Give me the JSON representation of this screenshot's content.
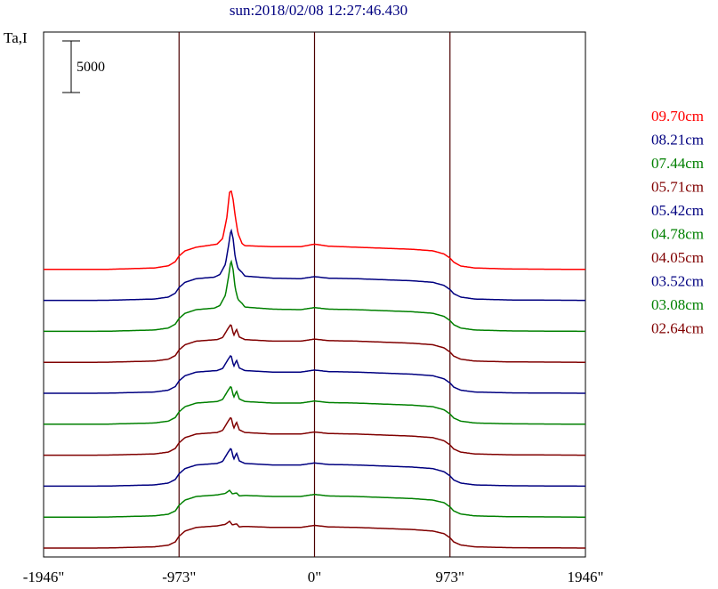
{
  "chart_data": {
    "type": "line",
    "title": "sun:2018/02/08 12:27:46.430",
    "ylabel": "Ta,I",
    "scale_bar_label": "5000",
    "xlim": [
      -1946,
      1946
    ],
    "x_ticks": [
      -1946,
      -973,
      0,
      973,
      1946
    ],
    "x_tick_labels": [
      "-1946\"",
      "-973\"",
      "0\"",
      "973\"",
      "1946\""
    ],
    "vertical_lines": [
      -973,
      0,
      973
    ],
    "series": [
      {
        "name": "02.64cm",
        "color": "#800000",
        "offset": 0,
        "profile": "low"
      },
      {
        "name": "03.08cm",
        "color": "#008000",
        "offset": 3000,
        "profile": "low"
      },
      {
        "name": "03.52cm",
        "color": "#000080",
        "offset": 6000,
        "profile": "mid"
      },
      {
        "name": "04.05cm",
        "color": "#800000",
        "offset": 9000,
        "profile": "mid"
      },
      {
        "name": "04.78cm",
        "color": "#008000",
        "offset": 12000,
        "profile": "mid"
      },
      {
        "name": "05.42cm",
        "color": "#000080",
        "offset": 15000,
        "profile": "mid"
      },
      {
        "name": "05.71cm",
        "color": "#800000",
        "offset": 18000,
        "profile": "mid"
      },
      {
        "name": "07.44cm",
        "color": "#008000",
        "offset": 21000,
        "profile": "high"
      },
      {
        "name": "08.21cm",
        "color": "#000080",
        "offset": 24000,
        "profile": "high"
      },
      {
        "name": "09.70cm",
        "color": "#ff0000",
        "offset": 27000,
        "profile": "top"
      }
    ],
    "legend_order": [
      "09.70cm",
      "08.21cm",
      "07.44cm",
      "05.71cm",
      "05.42cm",
      "04.78cm",
      "04.05cm",
      "03.52cm",
      "03.08cm",
      "02.64cm"
    ],
    "profiles": {
      "low": [
        [
          -1946,
          0
        ],
        [
          -1500,
          5
        ],
        [
          -1400,
          40
        ],
        [
          -1150,
          120
        ],
        [
          -1050,
          280
        ],
        [
          -1000,
          600
        ],
        [
          -973,
          1150
        ],
        [
          -930,
          1650
        ],
        [
          -850,
          2000
        ],
        [
          -700,
          2150
        ],
        [
          -640,
          2300
        ],
        [
          -610,
          2600
        ],
        [
          -590,
          2250
        ],
        [
          -560,
          2350
        ],
        [
          -540,
          2050
        ],
        [
          -500,
          2100
        ],
        [
          -300,
          2000
        ],
        [
          -100,
          2000
        ],
        [
          0,
          2200
        ],
        [
          100,
          2050
        ],
        [
          300,
          2000
        ],
        [
          500,
          1900
        ],
        [
          700,
          1800
        ],
        [
          850,
          1650
        ],
        [
          930,
          1400
        ],
        [
          973,
          1000
        ],
        [
          1000,
          600
        ],
        [
          1050,
          300
        ],
        [
          1150,
          120
        ],
        [
          1400,
          40
        ],
        [
          1946,
          0
        ]
      ],
      "mid": [
        [
          -1946,
          0
        ],
        [
          -1500,
          5
        ],
        [
          -1400,
          40
        ],
        [
          -1150,
          120
        ],
        [
          -1050,
          300
        ],
        [
          -1000,
          650
        ],
        [
          -973,
          1200
        ],
        [
          -930,
          1700
        ],
        [
          -850,
          2050
        ],
        [
          -700,
          2200
        ],
        [
          -660,
          2400
        ],
        [
          -620,
          3300
        ],
        [
          -600,
          3700
        ],
        [
          -580,
          2600
        ],
        [
          -560,
          3200
        ],
        [
          -540,
          2450
        ],
        [
          -500,
          2200
        ],
        [
          -300,
          2050
        ],
        [
          -100,
          2050
        ],
        [
          0,
          2250
        ],
        [
          100,
          2100
        ],
        [
          300,
          2050
        ],
        [
          500,
          1950
        ],
        [
          700,
          1850
        ],
        [
          850,
          1700
        ],
        [
          930,
          1400
        ],
        [
          973,
          1000
        ],
        [
          1000,
          600
        ],
        [
          1050,
          300
        ],
        [
          1150,
          120
        ],
        [
          1400,
          40
        ],
        [
          1946,
          0
        ]
      ],
      "high": [
        [
          -1946,
          0
        ],
        [
          -1500,
          5
        ],
        [
          -1400,
          40
        ],
        [
          -1150,
          130
        ],
        [
          -1050,
          320
        ],
        [
          -1000,
          700
        ],
        [
          -973,
          1250
        ],
        [
          -930,
          1750
        ],
        [
          -850,
          2100
        ],
        [
          -720,
          2250
        ],
        [
          -680,
          2500
        ],
        [
          -640,
          3500
        ],
        [
          -615,
          5500
        ],
        [
          -600,
          6900
        ],
        [
          -585,
          6000
        ],
        [
          -570,
          4200
        ],
        [
          -550,
          3100
        ],
        [
          -520,
          2700
        ],
        [
          -500,
          2350
        ],
        [
          -300,
          2150
        ],
        [
          -100,
          2100
        ],
        [
          0,
          2300
        ],
        [
          100,
          2150
        ],
        [
          300,
          2100
        ],
        [
          500,
          2000
        ],
        [
          700,
          1900
        ],
        [
          850,
          1750
        ],
        [
          930,
          1450
        ],
        [
          973,
          1050
        ],
        [
          1000,
          650
        ],
        [
          1050,
          320
        ],
        [
          1150,
          130
        ],
        [
          1400,
          40
        ],
        [
          1946,
          0
        ]
      ],
      "top": [
        [
          -1946,
          0
        ],
        [
          -1500,
          5
        ],
        [
          -1400,
          40
        ],
        [
          -1150,
          140
        ],
        [
          -1050,
          350
        ],
        [
          -1000,
          750
        ],
        [
          -973,
          1300
        ],
        [
          -930,
          1800
        ],
        [
          -850,
          2150
        ],
        [
          -700,
          2450
        ],
        [
          -660,
          3000
        ],
        [
          -630,
          5000
        ],
        [
          -610,
          7500
        ],
        [
          -598,
          7600
        ],
        [
          -585,
          6800
        ],
        [
          -570,
          5200
        ],
        [
          -550,
          3500
        ],
        [
          -520,
          2500
        ],
        [
          -500,
          2300
        ],
        [
          -300,
          2200
        ],
        [
          -100,
          2200
        ],
        [
          0,
          2450
        ],
        [
          100,
          2250
        ],
        [
          300,
          2150
        ],
        [
          500,
          2050
        ],
        [
          700,
          1950
        ],
        [
          850,
          1800
        ],
        [
          930,
          1500
        ],
        [
          973,
          1100
        ],
        [
          1000,
          700
        ],
        [
          1050,
          330
        ],
        [
          1150,
          140
        ],
        [
          1400,
          40
        ],
        [
          1946,
          0
        ]
      ]
    }
  }
}
